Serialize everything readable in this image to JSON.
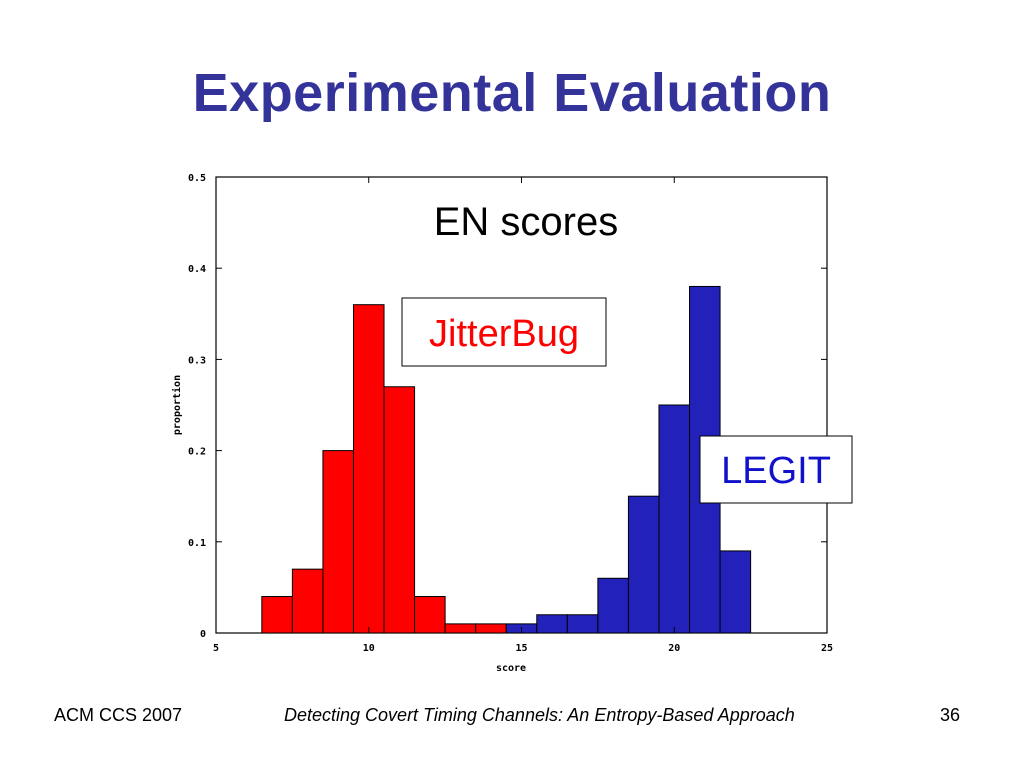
{
  "slide": {
    "title": "Experimental Evaluation",
    "footer_left": "ACM CCS 2007",
    "footer_center": "Detecting Covert Timing Channels: An Entropy-Based Approach",
    "footer_right": "36"
  },
  "chart_data": {
    "type": "bar",
    "title": "EN scores",
    "xlabel": "score",
    "ylabel": "proportion",
    "xlim": [
      5,
      25
    ],
    "ylim": [
      0,
      0.5
    ],
    "xticks": [
      5,
      10,
      15,
      20,
      25
    ],
    "yticks": [
      0,
      0.1,
      0.2,
      0.3,
      0.4,
      0.5
    ],
    "bin_width": 1,
    "series": [
      {
        "name": "JitterBug",
        "color": "#ff0000",
        "x": [
          7,
          8,
          9,
          10,
          11,
          12,
          13,
          14
        ],
        "values": [
          0.04,
          0.07,
          0.2,
          0.36,
          0.27,
          0.04,
          0.01,
          0.01
        ]
      },
      {
        "name": "LEGIT",
        "color": "#2222bb",
        "x": [
          15,
          16,
          17,
          18,
          19,
          20,
          21,
          22
        ],
        "values": [
          0.01,
          0.02,
          0.02,
          0.06,
          0.15,
          0.25,
          0.38,
          0.09
        ]
      }
    ]
  }
}
